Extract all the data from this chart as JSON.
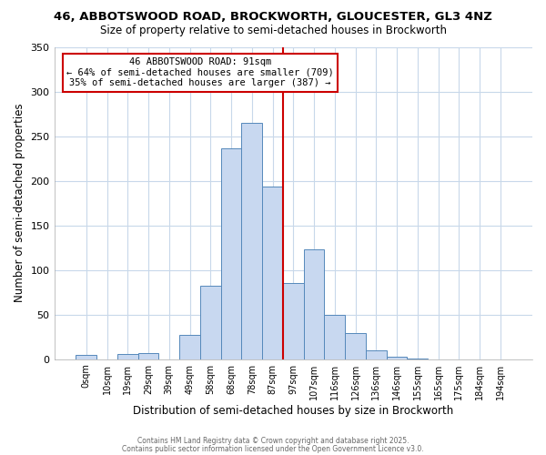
{
  "title": "46, ABBOTSWOOD ROAD, BROCKWORTH, GLOUCESTER, GL3 4NZ",
  "subtitle": "Size of property relative to semi-detached houses in Brockworth",
  "xlabel": "Distribution of semi-detached houses by size in Brockworth",
  "ylabel": "Number of semi-detached properties",
  "bar_labels": [
    "0sqm",
    "10sqm",
    "19sqm",
    "29sqm",
    "39sqm",
    "49sqm",
    "58sqm",
    "68sqm",
    "78sqm",
    "87sqm",
    "97sqm",
    "107sqm",
    "116sqm",
    "126sqm",
    "136sqm",
    "146sqm",
    "155sqm",
    "165sqm",
    "175sqm",
    "184sqm",
    "194sqm"
  ],
  "bar_heights": [
    5,
    0,
    6,
    7,
    0,
    27,
    82,
    236,
    265,
    193,
    85,
    123,
    50,
    29,
    10,
    3,
    1,
    0,
    0,
    0,
    0
  ],
  "bar_color": "#c8d8f0",
  "bar_edge_color": "#5588bb",
  "vline_color": "#cc0000",
  "annotation_title": "46 ABBOTSWOOD ROAD: 91sqm",
  "annotation_line1": "← 64% of semi-detached houses are smaller (709)",
  "annotation_line2": "35% of semi-detached houses are larger (387) →",
  "annotation_box_edge": "#cc0000",
  "ylim": [
    0,
    350
  ],
  "yticks": [
    0,
    50,
    100,
    150,
    200,
    250,
    300,
    350
  ],
  "footer1": "Contains HM Land Registry data © Crown copyright and database right 2025.",
  "footer2": "Contains public sector information licensed under the Open Government Licence v3.0.",
  "bg_color": "#ffffff",
  "grid_color": "#c8d8ea"
}
